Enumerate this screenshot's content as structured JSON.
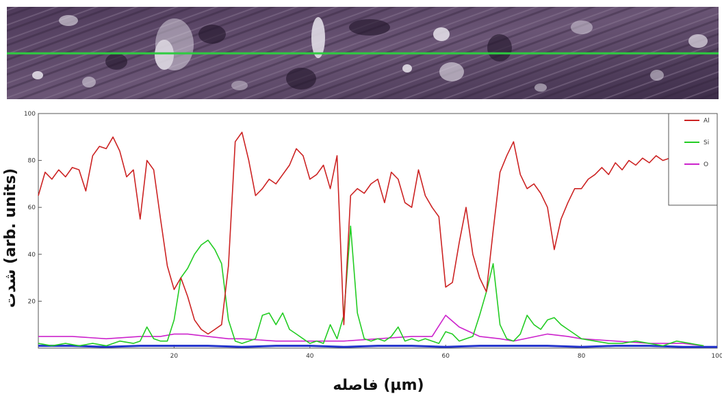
{
  "chart_data": {
    "type": "line",
    "xlabel": "فاصله (µm)",
    "ylabel": "شدت (arb. units)",
    "xlim": [
      0,
      100
    ],
    "ylim": [
      0,
      100
    ],
    "x_ticks": [
      "20",
      "40",
      "60",
      "80",
      "100"
    ],
    "y_ticks": [
      "20",
      "40",
      "60",
      "80",
      "100"
    ],
    "grid": false,
    "legend_position": "top-right",
    "scan_line_color": "#2ecc40",
    "series": [
      {
        "name": "Al",
        "color": "#cc2222",
        "x": [
          0,
          1,
          2,
          3,
          4,
          5,
          6,
          7,
          8,
          9,
          10,
          11,
          12,
          13,
          14,
          15,
          16,
          17,
          18,
          19,
          20,
          21,
          22,
          23,
          24,
          25,
          26,
          27,
          28,
          29,
          30,
          31,
          32,
          33,
          34,
          35,
          36,
          37,
          38,
          39,
          40,
          41,
          42,
          43,
          44,
          45,
          46,
          47,
          48,
          49,
          50,
          51,
          52,
          53,
          54,
          55,
          56,
          57,
          58,
          59,
          60,
          61,
          62,
          63,
          64,
          65,
          66,
          67,
          68,
          69,
          70,
          71,
          72,
          73,
          74,
          75,
          76,
          77,
          78,
          79,
          80,
          81,
          82,
          83,
          84,
          85,
          86,
          87,
          88,
          89,
          90,
          91,
          92,
          93,
          94
        ],
        "values": [
          65,
          75,
          72,
          76,
          73,
          77,
          76,
          67,
          82,
          86,
          85,
          90,
          84,
          73,
          76,
          55,
          80,
          76,
          55,
          35,
          25,
          30,
          22,
          12,
          8,
          6,
          8,
          10,
          35,
          88,
          92,
          80,
          65,
          68,
          72,
          70,
          74,
          78,
          85,
          82,
          72,
          74,
          78,
          68,
          82,
          10,
          65,
          68,
          66,
          70,
          72,
          62,
          75,
          72,
          62,
          60,
          76,
          65,
          60,
          56,
          26,
          28,
          45,
          60,
          40,
          30,
          24,
          50,
          75,
          82,
          88,
          74,
          68,
          70,
          66,
          60,
          42,
          55,
          62,
          68,
          68,
          72,
          74,
          77,
          74,
          79,
          76,
          80,
          78,
          81,
          79,
          82,
          80,
          81,
          87
        ]
      },
      {
        "name": "Si",
        "color": "#22cc22",
        "x": [
          0,
          2,
          4,
          6,
          8,
          10,
          12,
          14,
          15,
          16,
          17,
          18,
          19,
          20,
          21,
          22,
          23,
          24,
          25,
          26,
          27,
          28,
          29,
          30,
          31,
          32,
          33,
          34,
          35,
          36,
          37,
          38,
          39,
          40,
          41,
          42,
          43,
          44,
          45,
          46,
          47,
          48,
          49,
          50,
          51,
          52,
          53,
          54,
          55,
          56,
          57,
          58,
          59,
          60,
          61,
          62,
          63,
          64,
          65,
          66,
          67,
          68,
          69,
          70,
          71,
          72,
          73,
          74,
          75,
          76,
          77,
          78,
          79,
          80,
          82,
          84,
          86,
          88,
          90,
          92,
          94,
          96,
          98
        ],
        "values": [
          2,
          1,
          2,
          1,
          2,
          1,
          3,
          2,
          3,
          9,
          4,
          3,
          3,
          12,
          30,
          34,
          40,
          44,
          46,
          42,
          36,
          12,
          3,
          2,
          3,
          4,
          14,
          15,
          10,
          15,
          8,
          6,
          4,
          2,
          3,
          2,
          10,
          4,
          14,
          52,
          15,
          4,
          3,
          4,
          3,
          5,
          9,
          3,
          4,
          3,
          4,
          3,
          2,
          7,
          6,
          3,
          4,
          5,
          14,
          24,
          36,
          10,
          4,
          3,
          6,
          14,
          10,
          8,
          12,
          13,
          10,
          8,
          6,
          4,
          3,
          2,
          2,
          3,
          2,
          1,
          3,
          2,
          1
        ]
      },
      {
        "name": "O",
        "color": "#cc22cc",
        "x": [
          0,
          5,
          10,
          15,
          18,
          20,
          22,
          25,
          28,
          30,
          35,
          40,
          45,
          50,
          55,
          58,
          60,
          62,
          65,
          68,
          70,
          75,
          78,
          80,
          85,
          90,
          95,
          98
        ],
        "values": [
          5,
          5,
          4,
          5,
          5,
          6,
          6,
          5,
          4,
          4,
          3,
          3,
          3,
          4,
          5,
          5,
          14,
          9,
          5,
          4,
          3,
          6,
          5,
          4,
          3,
          2,
          2,
          1
        ]
      },
      {
        "name": "",
        "color": "#2233cc",
        "x": [
          0,
          5,
          10,
          15,
          20,
          25,
          30,
          35,
          40,
          45,
          50,
          55,
          60,
          65,
          70,
          75,
          80,
          85,
          90,
          95,
          100
        ],
        "values": [
          1,
          1,
          0.5,
          1,
          1,
          1,
          0.5,
          1,
          1,
          0.5,
          1,
          1,
          0.5,
          1,
          1,
          1,
          0.5,
          1,
          1,
          0.5,
          0.5
        ]
      }
    ]
  }
}
